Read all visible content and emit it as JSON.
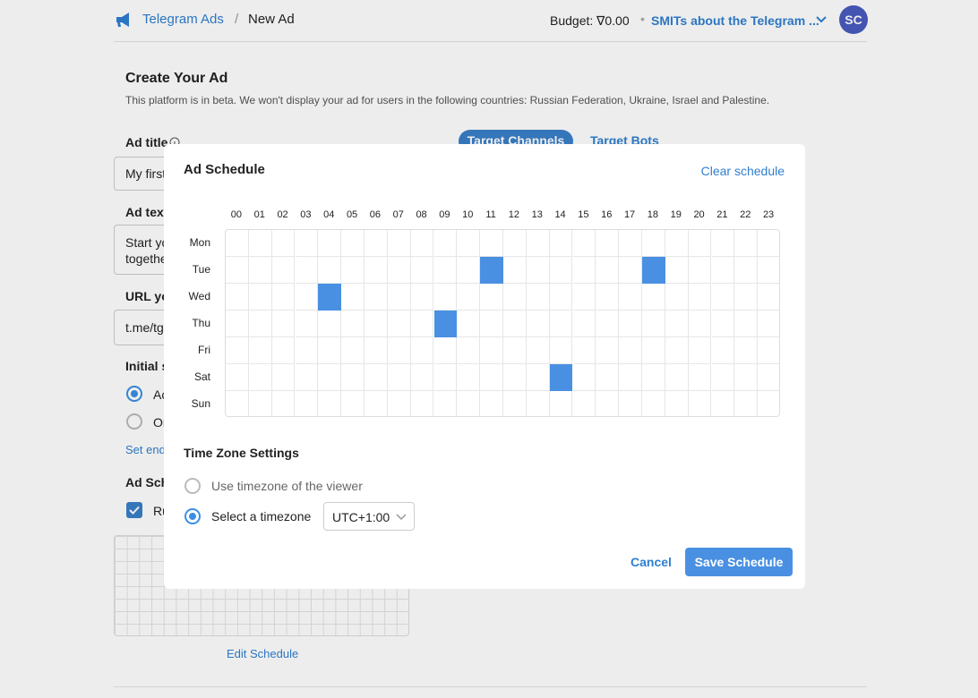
{
  "header": {
    "breadcrumb": [
      "Telegram Ads",
      "/",
      "New Ad"
    ],
    "budget_label": "Budget:",
    "budget_value": "∇0.00",
    "account": "SMITs about the Telegram ...",
    "avatar": "SC"
  },
  "background": {
    "title": "Create Your Ad",
    "description": "This platform is in beta. We won't display your ad for users in the following countries: Russian Federation, Ukraine, Israel and Palestine.",
    "tabs": [
      "Target Channels",
      "Target Bots"
    ],
    "fields": [
      {
        "label": "Ad title",
        "value": "My first"
      },
      {
        "label": "Ad text",
        "value": "Start yo",
        "value2": "togethe"
      },
      {
        "label": "URL yo",
        "value": "t.me/tg"
      }
    ],
    "initial_label": "Initial s",
    "options": [
      "Ac",
      "On"
    ],
    "set_end": "Set end",
    "schedule_label": "Ad Sch",
    "run_label": "Ru",
    "edit_schedule": "Edit Schedule"
  },
  "modal": {
    "title": "Ad Schedule",
    "clear": "Clear schedule",
    "hours": [
      "00",
      "01",
      "02",
      "03",
      "04",
      "05",
      "06",
      "07",
      "08",
      "09",
      "10",
      "11",
      "12",
      "13",
      "14",
      "15",
      "16",
      "17",
      "18",
      "19",
      "20",
      "21",
      "22",
      "23"
    ],
    "days": [
      {
        "name": "Mon",
        "selected": []
      },
      {
        "name": "Tue",
        "selected": [
          11,
          18
        ]
      },
      {
        "name": "Wed",
        "selected": [
          4
        ]
      },
      {
        "name": "Thu",
        "selected": [
          9
        ]
      },
      {
        "name": "Fri",
        "selected": []
      },
      {
        "name": "Sat",
        "selected": [
          14
        ]
      },
      {
        "name": "Sun",
        "selected": []
      }
    ],
    "timezone_title": "Time Zone Settings",
    "timezone_options": [
      {
        "label": "Use timezone of the viewer",
        "checked": false
      },
      {
        "label": "Select a timezone",
        "checked": true
      }
    ],
    "timezone_value": "UTC+1:00",
    "cancel": "Cancel",
    "save": "Save Schedule"
  }
}
